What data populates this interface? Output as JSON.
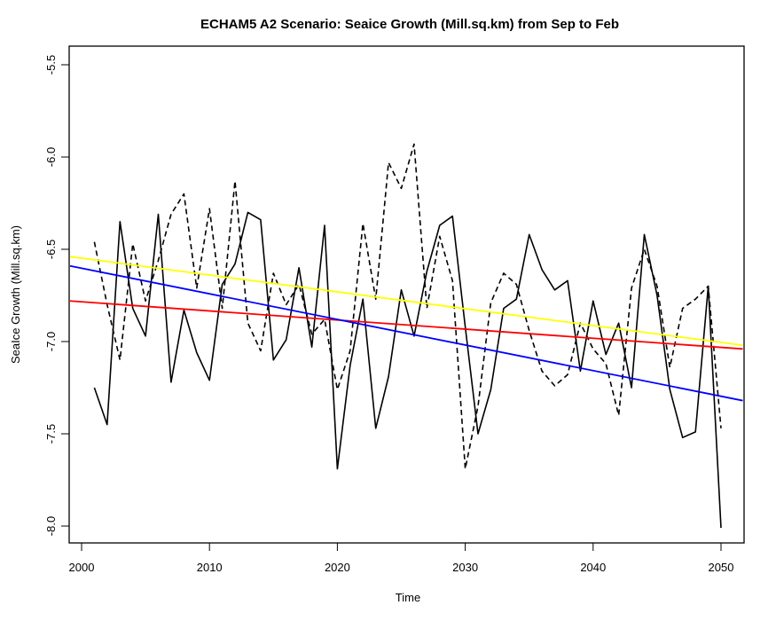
{
  "chart_data": {
    "type": "line",
    "title": "ECHAM5 A2 Scenario: Seaice Growth (Mill.sq.km) from Sep to Feb",
    "xlabel": "Time",
    "ylabel": "SeaIce Growth (Mill.sq.km)",
    "xlim": [
      1999.1,
      2051.7
    ],
    "ylim": [
      -8.1,
      -5.4
    ],
    "x_ticks": [
      2000,
      2010,
      2020,
      2030,
      2040,
      2050
    ],
    "x_tick_labels": [
      "2000",
      "2010",
      "2020",
      "2030",
      "2040",
      "2050"
    ],
    "y_ticks": [
      -5.5,
      -6.0,
      -6.5,
      -7.0,
      -7.5,
      -8.0
    ],
    "y_tick_labels": [
      "-5.5",
      "-6.0",
      "-6.5",
      "-7.0",
      "-7.5",
      "-8.0"
    ],
    "grid": false,
    "legend": null,
    "x": [
      2001,
      2002,
      2003,
      2004,
      2005,
      2006,
      2007,
      2008,
      2009,
      2010,
      2011,
      2012,
      2013,
      2014,
      2015,
      2016,
      2017,
      2018,
      2019,
      2020,
      2021,
      2022,
      2023,
      2024,
      2025,
      2026,
      2027,
      2028,
      2029,
      2030,
      2031,
      2032,
      2033,
      2034,
      2035,
      2036,
      2037,
      2038,
      2039,
      2040,
      2041,
      2042,
      2043,
      2044,
      2045,
      2046,
      2047,
      2048,
      2049,
      2050
    ],
    "series": [
      {
        "name": "solid",
        "style": "solid",
        "color": "#000000",
        "values": [
          -7.25,
          -7.45,
          -6.35,
          -6.82,
          -6.97,
          -6.31,
          -7.22,
          -6.83,
          -7.06,
          -7.21,
          -6.69,
          -6.58,
          -6.3,
          -6.34,
          -7.1,
          -6.99,
          -6.6,
          -7.03,
          -6.37,
          -7.69,
          -7.13,
          -6.77,
          -7.47,
          -7.19,
          -6.72,
          -6.97,
          -6.62,
          -6.37,
          -6.32,
          -6.92,
          -7.5,
          -7.26,
          -6.82,
          -6.77,
          -6.42,
          -6.61,
          -6.72,
          -6.67,
          -7.16,
          -6.78,
          -7.07,
          -6.9,
          -7.25,
          -6.42,
          -6.75,
          -7.26,
          -7.52,
          -7.49,
          -6.7,
          -8.01
        ]
      },
      {
        "name": "dashed",
        "style": "dashed",
        "color": "#000000",
        "values": [
          -6.46,
          -6.8,
          -7.1,
          -6.47,
          -6.78,
          -6.56,
          -6.31,
          -6.2,
          -6.71,
          -6.28,
          -6.82,
          -6.13,
          -6.9,
          -7.05,
          -6.63,
          -6.8,
          -6.69,
          -6.96,
          -6.88,
          -7.26,
          -7.05,
          -6.36,
          -6.77,
          -6.03,
          -6.17,
          -5.93,
          -6.82,
          -6.43,
          -6.67,
          -7.69,
          -7.35,
          -6.79,
          -6.63,
          -6.69,
          -6.94,
          -7.16,
          -7.24,
          -7.18,
          -6.9,
          -7.04,
          -7.12,
          -7.4,
          -6.71,
          -6.5,
          -6.7,
          -7.14,
          -6.82,
          -6.77,
          -6.7,
          -7.47
        ]
      }
    ],
    "trend_lines": [
      {
        "name": "yellow-trend",
        "color": "#ffff00",
        "x": [
          1999.1,
          2051.7
        ],
        "values": [
          -6.54,
          -7.02
        ]
      },
      {
        "name": "red-trend",
        "color": "#ff0000",
        "x": [
          1999.1,
          2051.7
        ],
        "values": [
          -6.78,
          -7.04
        ]
      },
      {
        "name": "blue-trend",
        "color": "#0000ff",
        "x": [
          1999.1,
          2051.7
        ],
        "values": [
          -6.59,
          -7.32
        ]
      }
    ]
  }
}
